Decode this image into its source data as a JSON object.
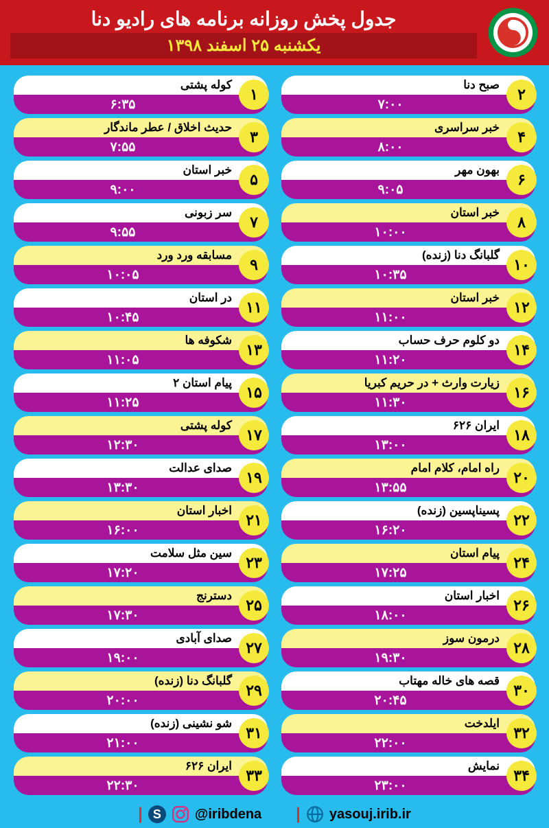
{
  "header": {
    "title": "جدول پخش روزانه برنامه های رادیو دنا",
    "subtitle": "یکشنبه ۲۵ اسفند ۱۳۹۸"
  },
  "colors": {
    "bg": "#27bced",
    "header_bg": "#c8171d",
    "subheader_bg": "#a31218",
    "subtitle_color": "#f5ea3b",
    "pill_top": "#ffffff",
    "pill_top_hl": "#fcf395",
    "pill_bottom": "#a8159a",
    "circle": "#f5ea3b"
  },
  "right_column": [
    {
      "num": "۱",
      "name": "کوله پشتی",
      "time": "۶:۳۵",
      "hl": false
    },
    {
      "num": "۳",
      "name": "حدیث اخلاق / عطر ماندگار",
      "time": "۷:۵۵",
      "hl": true
    },
    {
      "num": "۵",
      "name": "خبر استان",
      "time": "۹:۰۰",
      "hl": false
    },
    {
      "num": "۷",
      "name": "سر زبونی",
      "time": "۹:۵۵",
      "hl": false
    },
    {
      "num": "۹",
      "name": "مسابقه ورد ورد",
      "time": "۱۰:۰۵",
      "hl": true
    },
    {
      "num": "۱۱",
      "name": "در استان",
      "time": "۱۰:۴۵",
      "hl": false
    },
    {
      "num": "۱۳",
      "name": "شکوفه ها",
      "time": "۱۱:۰۵",
      "hl": true
    },
    {
      "num": "۱۵",
      "name": "پیام استان ۲",
      "time": "۱۱:۲۵",
      "hl": false
    },
    {
      "num": "۱۷",
      "name": "کوله پشتی",
      "time": "۱۲:۳۰",
      "hl": true
    },
    {
      "num": "۱۹",
      "name": "صدای عدالت",
      "time": "۱۳:۳۰",
      "hl": false
    },
    {
      "num": "۲۱",
      "name": "اخبار استان",
      "time": "۱۶:۰۰",
      "hl": true
    },
    {
      "num": "۲۳",
      "name": "سین مثل سلامت",
      "time": "۱۷:۲۰",
      "hl": false
    },
    {
      "num": "۲۵",
      "name": "دسترنج",
      "time": "۱۷:۳۰",
      "hl": true
    },
    {
      "num": "۲۷",
      "name": "صدای آبادی",
      "time": "۱۹:۰۰",
      "hl": false
    },
    {
      "num": "۲۹",
      "name": "گلبانگ دنا (زنده)",
      "time": "۲۰:۰۰",
      "hl": true
    },
    {
      "num": "۳۱",
      "name": "شو نشینی (زنده)",
      "time": "۲۱:۰۰",
      "hl": false
    },
    {
      "num": "۳۳",
      "name": "ایران ۶۲۶",
      "time": "۲۲:۳۰",
      "hl": true
    }
  ],
  "left_column": [
    {
      "num": "۲",
      "name": "صبح دنا",
      "time": "۷:۰۰",
      "hl": false
    },
    {
      "num": "۴",
      "name": "خبر سراسری",
      "time": "۸:۰۰",
      "hl": true
    },
    {
      "num": "۶",
      "name": "بهون مهر",
      "time": "۹:۰۵",
      "hl": false
    },
    {
      "num": "۸",
      "name": "خبر استان",
      "time": "۱۰:۰۰",
      "hl": true
    },
    {
      "num": "۱۰",
      "name": "گلبانگ دنا (زنده)",
      "time": "۱۰:۳۵",
      "hl": false
    },
    {
      "num": "۱۲",
      "name": "خبر استان",
      "time": "۱۱:۰۰",
      "hl": true
    },
    {
      "num": "۱۴",
      "name": "دو کلوم حرف حساب",
      "time": "۱۱:۲۰",
      "hl": false
    },
    {
      "num": "۱۶",
      "name": "زیارت وارث + در حریم کبریا",
      "time": "۱۱:۳۰",
      "hl": true
    },
    {
      "num": "۱۸",
      "name": "ایران ۶۲۶",
      "time": "۱۳:۰۰",
      "hl": false
    },
    {
      "num": "۲۰",
      "name": "راه امام، کلام امام",
      "time": "۱۳:۵۵",
      "hl": true
    },
    {
      "num": "۲۲",
      "name": "پسیناپسین (زنده)",
      "time": "۱۶:۲۰",
      "hl": false
    },
    {
      "num": "۲۴",
      "name": "پیام استان",
      "time": "۱۷:۲۵",
      "hl": true
    },
    {
      "num": "۲۶",
      "name": "اخبار استان",
      "time": "۱۸:۰۰",
      "hl": false
    },
    {
      "num": "۲۸",
      "name": "درمون سوز",
      "time": "۱۹:۳۰",
      "hl": true
    },
    {
      "num": "۳۰",
      "name": "قصه های خاله مهتاب",
      "time": "۲۰:۴۵",
      "hl": false
    },
    {
      "num": "۳۲",
      "name": "ایلدخت",
      "time": "۲۲:۰۰",
      "hl": true
    },
    {
      "num": "۳۴",
      "name": "نمایش",
      "time": "۲۳:۰۰",
      "hl": false
    }
  ],
  "footer": {
    "handle": "@iribdena",
    "url": "yasouj.irib.ir"
  }
}
